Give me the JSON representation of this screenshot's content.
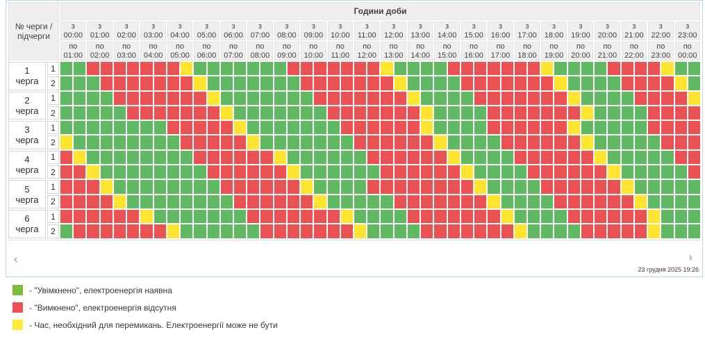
{
  "panel": {
    "hours_title": "Години доби",
    "corner_line1": "№ черги /",
    "corner_line2": "підчерги",
    "from_prefix": "з",
    "to_prefix": "по",
    "columns": [
      {
        "from": "00:00",
        "to": "01:00"
      },
      {
        "from": "01:00",
        "to": "02:00"
      },
      {
        "from": "02:00",
        "to": "03:00"
      },
      {
        "from": "03:00",
        "to": "04:00"
      },
      {
        "from": "04:00",
        "to": "05:00"
      },
      {
        "from": "05:00",
        "to": "06:00"
      },
      {
        "from": "06:00",
        "to": "07:00"
      },
      {
        "from": "07:00",
        "to": "08:00"
      },
      {
        "from": "08:00",
        "to": "09:00"
      },
      {
        "from": "09:00",
        "to": "10:00"
      },
      {
        "from": "10:00",
        "to": "11:00"
      },
      {
        "from": "11:00",
        "to": "12:00"
      },
      {
        "from": "12:00",
        "to": "13:00"
      },
      {
        "from": "13:00",
        "to": "14:00"
      },
      {
        "from": "14:00",
        "to": "15:00"
      },
      {
        "from": "15:00",
        "to": "16:00"
      },
      {
        "from": "16:00",
        "to": "17:00"
      },
      {
        "from": "17:00",
        "to": "18:00"
      },
      {
        "from": "18:00",
        "to": "19:00"
      },
      {
        "from": "19:00",
        "to": "20:00"
      },
      {
        "from": "20:00",
        "to": "21:00"
      },
      {
        "from": "21:00",
        "to": "22:00"
      },
      {
        "from": "22:00",
        "to": "23:00"
      },
      {
        "from": "23:00",
        "to": "00:00"
      }
    ],
    "queues": [
      {
        "num": "1",
        "word": "черга",
        "subs": [
          {
            "id": "1",
            "cells": "GGRRRRRRRYGGGGGGGRRRRRRRYGGGGRRRRRRRYGGGGRRRRYGG"
          },
          {
            "id": "2",
            "cells": "GGGRRRRRRRYGGGGGGGRRRRRRRYGGGGRRRRRRRYGGGGRRRRYG"
          }
        ]
      },
      {
        "num": "2",
        "word": "черга",
        "subs": [
          {
            "id": "1",
            "cells": "GGGGRRRRRRRYGGGGGGGRRRRRRRYGGGGRRRRRRRYGGGGRRRRY"
          },
          {
            "id": "2",
            "cells": "GGGGGRRRRRRRYGGGGGGGRRRRRRRYGGGGRRRRRRRYGGGGRRRR"
          }
        ]
      },
      {
        "num": "3",
        "word": "черга",
        "subs": [
          {
            "id": "1",
            "cells": "GGGGGGGGRRRRRYGGGGGGGRRRRRRYGGGGRRRRRRYGGGGGRRRR"
          },
          {
            "id": "2",
            "cells": "YGGGGGGGGRRRRRYGGGGGGGRRRRRRYGGGGRRRRRRYGGGGGRRR"
          }
        ]
      },
      {
        "num": "4",
        "word": "черга",
        "subs": [
          {
            "id": "1",
            "cells": "RYGGGGGGGGRRRRRRYGGGGGGRRRRRRYGGGGRRRRRRYGGGGGRR"
          },
          {
            "id": "2",
            "cells": "RRYGGGGGGGGRRRRRRYGGGGGGRRRRRRYGGGGRRRRRRYGGGGGR"
          }
        ]
      },
      {
        "num": "5",
        "word": "черга",
        "subs": [
          {
            "id": "1",
            "cells": "RRRYGGGGGGGGRRRRRRYGGGGRRRRRRRRYGGGGRRRRRRYGGGGG"
          },
          {
            "id": "2",
            "cells": "RRRRYGGGGGGGGRRRRRRYGGGGGRRRRRRRYGGGGRRRRRRYGGGG"
          }
        ]
      },
      {
        "num": "6",
        "word": "черга",
        "subs": [
          {
            "id": "1",
            "cells": "RRRRRRYGGGGGGGRRRRRRRYGGGGRRRRRRRYGGGGRRRRRRYGGG"
          },
          {
            "id": "2",
            "cells": "GRRRRRRRYGGGGGGRRRRRRRYGGGGRRRRRRRYGGGGRRRRRYGGG"
          }
        ]
      }
    ],
    "nav": {
      "prev": "‹",
      "next": "›"
    },
    "timestamp": "23 грудня 2025 19:26"
  },
  "colors": {
    "on": "#62b964",
    "off": "#e95153",
    "switch": "#ffe431"
  },
  "cell_codes": {
    "G": "on",
    "R": "off",
    "Y": "switch"
  },
  "cell_states": {
    "G": "увімкнено",
    "R": "вимкнено",
    "Y": "перемикання"
  },
  "legend": {
    "items": [
      {
        "color": "#7cbd3c",
        "label": "- \"Увімкнено\", електроенергія наявна"
      },
      {
        "color": "#e95153",
        "label": "- \"Вимкнено\", електроенергія відсутня"
      },
      {
        "color": "#ffe93b",
        "label": "- Час, необхідний для перемикань. Електроенергії може не бути"
      }
    ]
  }
}
